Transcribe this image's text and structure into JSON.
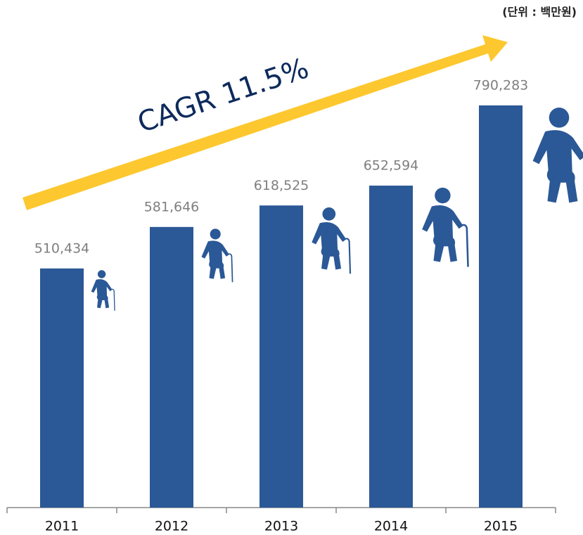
{
  "chart_data": {
    "type": "bar",
    "unit_label": "(단위 : 백만원)",
    "annotation": "CAGR 11.5%",
    "categories": [
      "2011",
      "2012",
      "2013",
      "2014",
      "2015"
    ],
    "values": [
      510434,
      581646,
      618525,
      652594,
      790283
    ],
    "value_labels": [
      "510,434",
      "581,646",
      "618,525",
      "652,594",
      "790,283"
    ],
    "color": "#2b5896",
    "ylim": [
      100000,
      900000
    ]
  }
}
